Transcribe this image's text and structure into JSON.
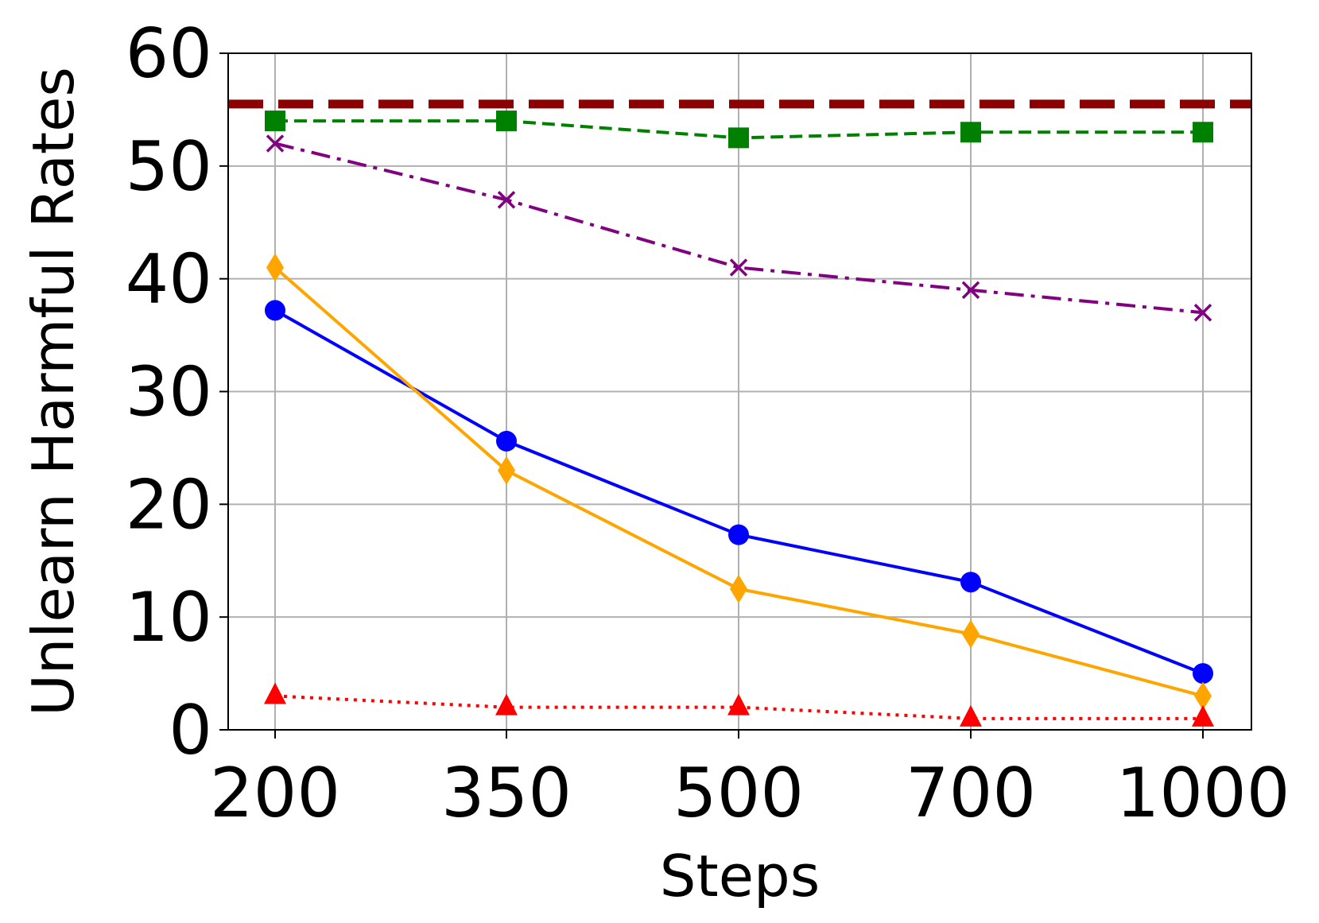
{
  "chart_data": {
    "type": "line",
    "title": "",
    "xlabel": "Steps",
    "ylabel": "Unlearn Harmful Rates",
    "x": [
      200,
      350,
      500,
      700,
      1000
    ],
    "x_tick_labels": [
      "200",
      "350",
      "500",
      "700",
      "1000"
    ],
    "x_axis_scale": "categorical (evenly spaced)",
    "ylim": [
      0,
      60
    ],
    "y_ticks": [
      0,
      10,
      20,
      30,
      40,
      50,
      60
    ],
    "y_tick_labels": [
      "0",
      "10",
      "20",
      "30",
      "40",
      "50",
      "60"
    ],
    "grid": true,
    "legend": "none",
    "reference_lines": [
      {
        "orientation": "horizontal",
        "y": 55.5,
        "color": "#8b0000",
        "style": "dashed"
      }
    ],
    "series": [
      {
        "values": [
          54,
          54,
          52.5,
          53,
          53
        ],
        "color": "#008000",
        "marker": "square",
        "line_style": "dashed"
      },
      {
        "values": [
          52,
          47,
          41,
          39,
          37
        ],
        "color": "#800080",
        "marker": "x",
        "line_style": "dashdot"
      },
      {
        "values": [
          37.2,
          25.6,
          17.3,
          13.1,
          5
        ],
        "color": "#0000ff",
        "marker": "circle",
        "line_style": "solid"
      },
      {
        "values": [
          41,
          23,
          12.5,
          8.5,
          3
        ],
        "color": "#ffa500",
        "marker": "diamond",
        "line_style": "solid"
      },
      {
        "values": [
          3,
          2,
          2,
          1,
          1
        ],
        "color": "#ff0000",
        "marker": "triangle",
        "line_style": "dotted"
      }
    ]
  }
}
